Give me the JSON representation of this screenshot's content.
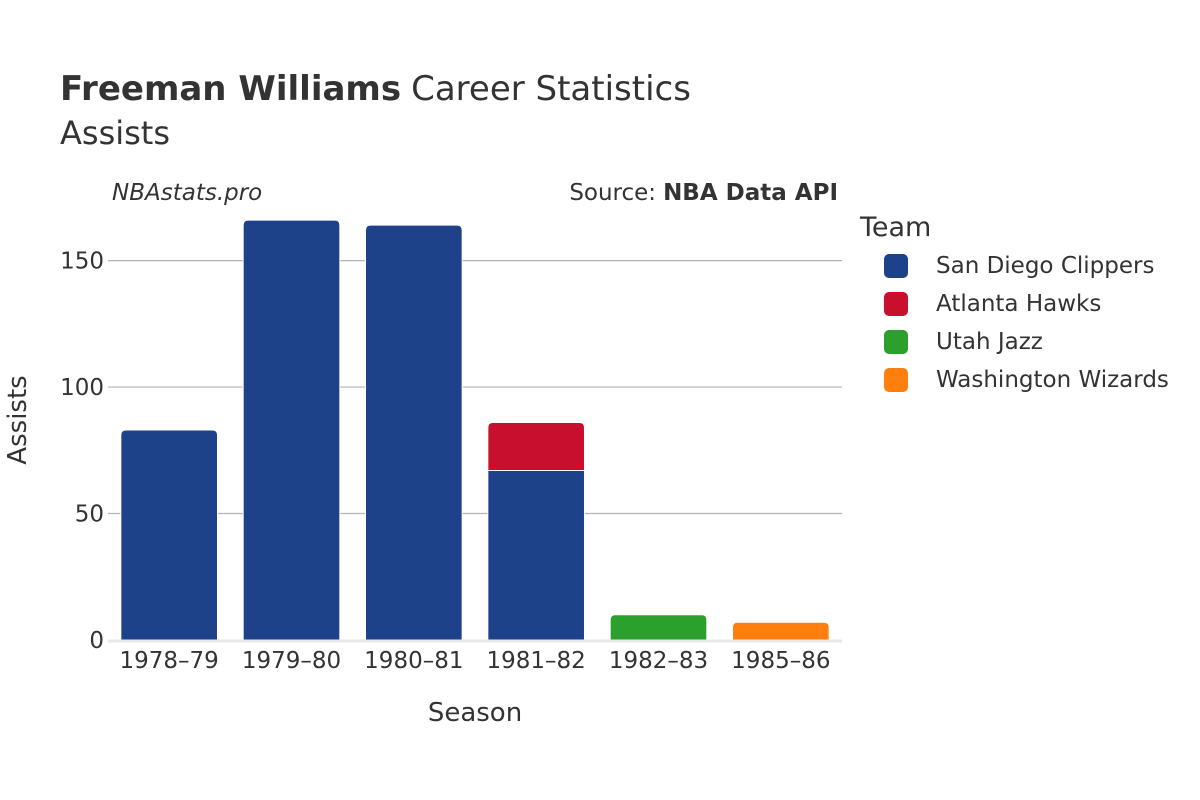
{
  "header": {
    "title_bold": "Freeman Williams",
    "title_rest": "Career Statistics",
    "subtitle": "Assists",
    "watermark": "NBAstats.pro",
    "source_prefix": "Source:",
    "source_bold": "NBA Data API"
  },
  "legend": {
    "title": "Team",
    "items": [
      {
        "label": "San Diego Clippers",
        "color": "#1d428a"
      },
      {
        "label": "Atlanta Hawks",
        "color": "#c8102e"
      },
      {
        "label": "Utah Jazz",
        "color": "#2ca02c"
      },
      {
        "label": "Washington Wizards",
        "color": "#ff7f0e"
      }
    ]
  },
  "chart_data": {
    "type": "bar",
    "stacked": true,
    "xlabel": "Season",
    "ylabel": "Assists",
    "ylim": [
      0,
      170
    ],
    "yticks": [
      0,
      50,
      100,
      150
    ],
    "grid": true,
    "legend_position": "right",
    "categories": [
      "1978–79",
      "1979–80",
      "1980–81",
      "1981–82",
      "1982–83",
      "1985–86"
    ],
    "series": [
      {
        "name": "San Diego Clippers",
        "color": "#1d428a",
        "values": [
          83,
          166,
          164,
          67,
          0,
          0
        ]
      },
      {
        "name": "Atlanta Hawks",
        "color": "#c8102e",
        "values": [
          0,
          0,
          0,
          19,
          0,
          0
        ]
      },
      {
        "name": "Utah Jazz",
        "color": "#2ca02c",
        "values": [
          0,
          0,
          0,
          0,
          10,
          0
        ]
      },
      {
        "name": "Washington Wizards",
        "color": "#ff7f0e",
        "values": [
          0,
          0,
          0,
          0,
          0,
          7
        ]
      }
    ]
  }
}
